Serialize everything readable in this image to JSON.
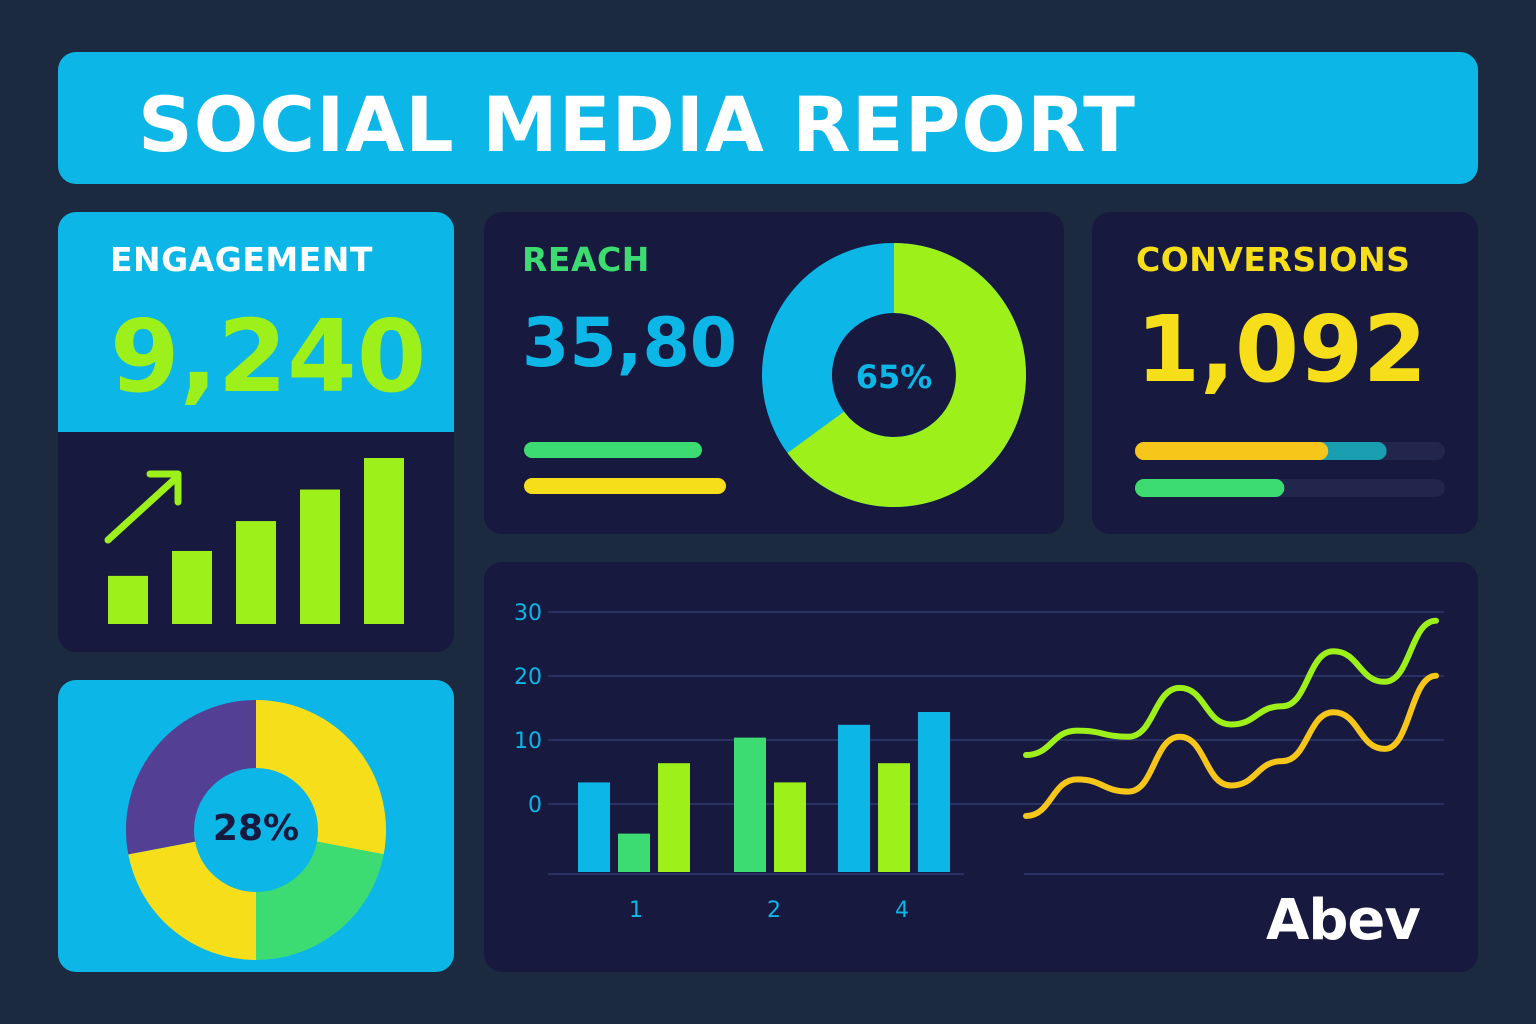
{
  "header": {
    "title": "SOCIAL MEDIA REPORT"
  },
  "engagement": {
    "label": "ENGAGEMENT",
    "value": "9,240",
    "trend_icon": "arrow-up-right-icon",
    "bars": [
      0.29,
      0.44,
      0.62,
      0.81,
      1.0
    ]
  },
  "reach": {
    "label": "REACH",
    "value": "35,80",
    "donut_label": "65%",
    "donut_percent": 65,
    "bars": [
      {
        "color": "#3ddc72",
        "fill": 1.0
      },
      {
        "color": "#f6df1a",
        "fill": 1.0
      }
    ]
  },
  "conversions": {
    "label": "CONVERSIONS",
    "value": "1,092",
    "bars": [
      {
        "fills": [
          0.6,
          0.8
        ],
        "colors": [
          "#f6c61a",
          "#1a9fb0"
        ]
      },
      {
        "fills": [
          0.45
        ],
        "colors": [
          "#3ddc72"
        ]
      }
    ]
  },
  "donut_card": {
    "label": "28%",
    "segments": [
      {
        "value": 28,
        "color": "#f6df1a"
      },
      {
        "value": 22,
        "color": "#3ddc72"
      },
      {
        "value": 22,
        "color": "#f6df1a"
      },
      {
        "value": 28,
        "color": "#533f94"
      }
    ]
  },
  "chart_data": {
    "type": "bar",
    "y_ticks": [
      "30",
      "20",
      "10",
      "0"
    ],
    "x_ticks": [
      "1",
      "2",
      "4"
    ],
    "ylim": [
      0,
      30
    ],
    "groups": [
      {
        "bars": [
          {
            "value": 14,
            "color": "#0cb6e6"
          },
          {
            "value": 6,
            "color": "#3ddc72"
          },
          {
            "value": 17,
            "color": "#9ef01a"
          }
        ]
      },
      {
        "bars": [
          {
            "value": 21,
            "color": "#3ddc72"
          },
          {
            "value": 14,
            "color": "#9ef01a"
          }
        ]
      },
      {
        "bars": [
          {
            "value": 23,
            "color": "#0cb6e6"
          },
          {
            "value": 17,
            "color": "#9ef01a"
          },
          {
            "value": 25,
            "color": "#0cb6e6"
          }
        ]
      }
    ],
    "lines": [
      {
        "color": "#9ef01a",
        "values": [
          10,
          14,
          13,
          21,
          15,
          18,
          27,
          22,
          32
        ]
      },
      {
        "color": "#f6c61a",
        "values": [
          0,
          6,
          4,
          13,
          5,
          9,
          17,
          11,
          23
        ]
      }
    ]
  },
  "brand": {
    "logo_text": "Abev"
  },
  "colors": {
    "background": "#1b2a3f",
    "panel": "#17193f",
    "accent": "#0cb6e6",
    "lime": "#9ef01a",
    "yellow": "#f6df1a",
    "green": "#3ddc72",
    "purple": "#533f94"
  }
}
